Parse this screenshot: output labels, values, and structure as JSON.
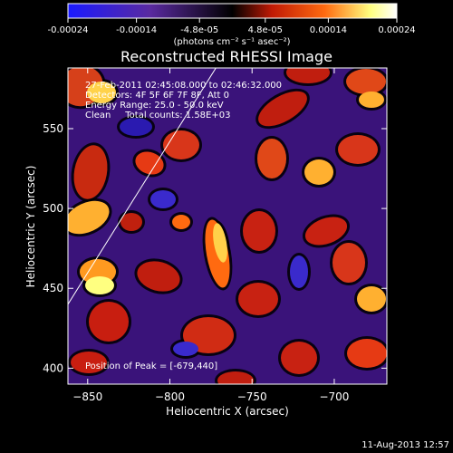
{
  "colorbar": {
    "ticks": [
      "-0.00024",
      "-0.00014",
      "-4.8e-05",
      "4.8e-05",
      "0.00014",
      "0.00024"
    ],
    "tick_values": [
      -0.00024,
      -0.00014,
      -4.8e-05,
      4.8e-05,
      0.00014,
      0.00024
    ],
    "range": [
      -0.00024,
      0.00024
    ],
    "unit_label": "(photons cm⁻² s⁻¹ asec⁻²)",
    "colors": [
      "#1a1aff",
      "#5a2aa0",
      "#000000",
      "#c01a05",
      "#ff6a10",
      "#ffff80",
      "#ffffff"
    ]
  },
  "chart_data": {
    "type": "heatmap",
    "title": "Reconstructed RHESSI Image",
    "xlabel": "Heliocentric X (arcsec)",
    "ylabel": "Heliocentric Y (arcsec)",
    "xlim": [
      -862,
      -668
    ],
    "ylim": [
      390,
      588
    ],
    "xticks": [
      -850,
      -800,
      -750,
      -700
    ],
    "yticks": [
      400,
      450,
      500,
      550
    ],
    "limb_line": [
      [
        -862,
        440
      ],
      [
        -772,
        588
      ]
    ],
    "peak": [
      -679,
      440
    ],
    "info_lines": [
      "27-Feb-2011 02:45:08.000 to 02:46:32.000",
      "Detectors: 4F 5F 6F 7F 8F, Att 0",
      "Energy Range: 25.0 - 50.0 keV",
      "Clean     Total counts: 1.58E+03"
    ],
    "peak_label": "Position of Peak = [-679,440]",
    "grid": false,
    "legend": "none"
  },
  "footer": {
    "date": "11-Aug-2013 12:57"
  }
}
